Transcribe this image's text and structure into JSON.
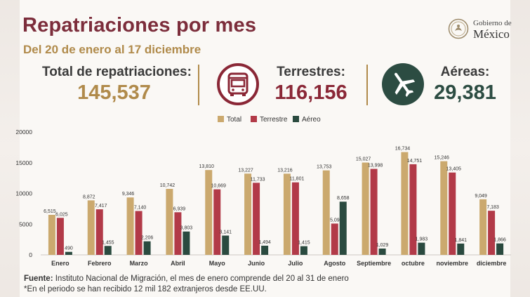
{
  "header": {
    "title": "Repatriaciones por mes",
    "subtitle": "Del 20 de enero al 17 diciembre"
  },
  "logo": {
    "line1": "Gobierno de",
    "line2": "México"
  },
  "stats": {
    "total": {
      "label": "Total de repatriaciones:",
      "value": "145,537"
    },
    "land": {
      "label": "Terrestres:",
      "value": "116,156",
      "icon": "bus-icon"
    },
    "air": {
      "label": "Aéreas:",
      "value": "29,381",
      "icon": "airplane-icon"
    }
  },
  "colors": {
    "total": "#cba96e",
    "land": "#b23a48",
    "air": "#2a4a3f",
    "brand": "#7c2d3b",
    "gold": "#b08a4a"
  },
  "chart_data": {
    "type": "bar",
    "categories": [
      "Enero",
      "Febrero",
      "Marzo",
      "Abril",
      "Mayo",
      "Junio",
      "Julio",
      "Agosto",
      "Septiembre",
      "octubre",
      "noviembre",
      "diciembre"
    ],
    "series": [
      {
        "name": "Total",
        "color": "#cba96e",
        "values": [
          6515,
          8872,
          9346,
          10742,
          13810,
          13227,
          13216,
          13753,
          15027,
          16734,
          15246,
          9049
        ],
        "labels": [
          "6,515",
          "8,872",
          "9,346",
          "10,742",
          "13,810",
          "13,227",
          "13,216",
          "13,753",
          "15,027",
          "16,734",
          "15,246",
          "9,049"
        ]
      },
      {
        "name": "Terrestre",
        "color": "#b23a48",
        "values": [
          6025,
          7417,
          7140,
          6939,
          10669,
          11733,
          11801,
          5095,
          13998,
          14751,
          13405,
          7183
        ],
        "labels": [
          "6,025",
          "7,417",
          "7,140",
          "6,939",
          "10,669",
          "11,733",
          "11,801",
          "5,095",
          "13,998",
          "14,751",
          "13,405",
          "7,183"
        ]
      },
      {
        "name": "Aéreo",
        "color": "#2a4a3f",
        "values": [
          490,
          1455,
          2206,
          3803,
          3141,
          1494,
          1415,
          8658,
          1029,
          1983,
          1841,
          1866
        ],
        "labels": [
          "490",
          "1,455",
          "2,206",
          "3,803",
          "3,141",
          "1,494",
          "1,415",
          "8,658",
          "1,029",
          "1,983",
          "1,841",
          "1,866"
        ]
      }
    ],
    "yticks": [
      "0",
      "5000",
      "10000",
      "15000",
      "20000"
    ],
    "ylim": [
      0,
      20000
    ],
    "legend_position": "top-center",
    "grid": false
  },
  "footer": {
    "source_label": "Fuente:",
    "source_text": " Instituto Nacional de Migración, el mes de enero comprende del 20 al 31 de enero",
    "note": "*En el periodo se han recibido 12 mil 182 extranjeros desde EE.UU."
  }
}
